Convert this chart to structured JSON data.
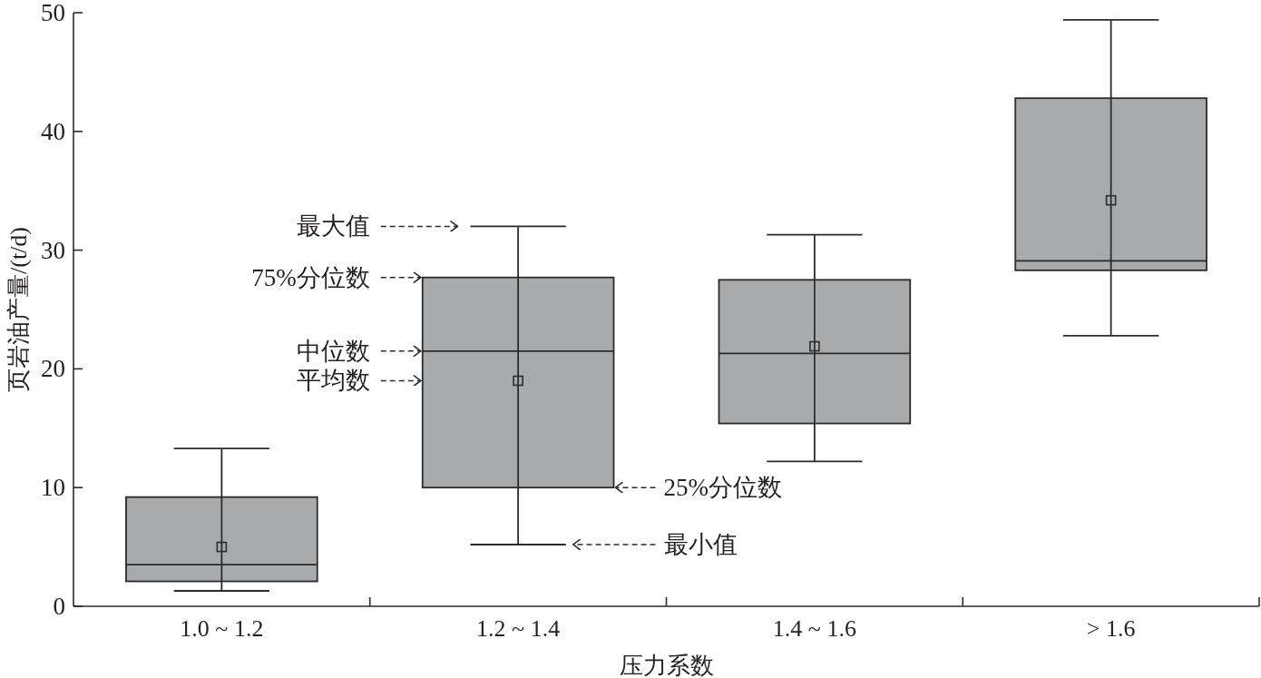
{
  "chart_data": {
    "type": "box",
    "xlabel": "压力系数",
    "ylabel": "页岩油产量/(t/d)",
    "categories": [
      "1.0 ~ 1.2",
      "1.2 ~ 1.4",
      "1.4 ~ 1.6",
      "> 1.6"
    ],
    "ylim": [
      0,
      50
    ],
    "yticks": [
      0,
      10,
      20,
      30,
      40,
      50
    ],
    "marker": "square",
    "series": [
      {
        "color": "#a9aaac",
        "boxes": [
          {
            "low": 1.3,
            "q1": 2.1,
            "median": 3.5,
            "q3": 9.2,
            "high": 13.3,
            "mean": 5.0
          },
          {
            "low": 5.2,
            "q1": 10.0,
            "median": 21.5,
            "q3": 27.7,
            "high": 32.0,
            "mean": 19.0
          },
          {
            "low": 12.2,
            "q1": 15.4,
            "median": 21.3,
            "q3": 27.5,
            "high": 31.3,
            "mean": 21.9
          },
          {
            "low": 22.8,
            "q1": 28.3,
            "median": 29.1,
            "q3": 42.8,
            "high": 49.4,
            "mean": 34.2
          }
        ]
      }
    ],
    "annotations": [
      "最大值",
      "75%分位数",
      "中位数",
      "平均数",
      "25%分位数",
      "最小值"
    ]
  }
}
